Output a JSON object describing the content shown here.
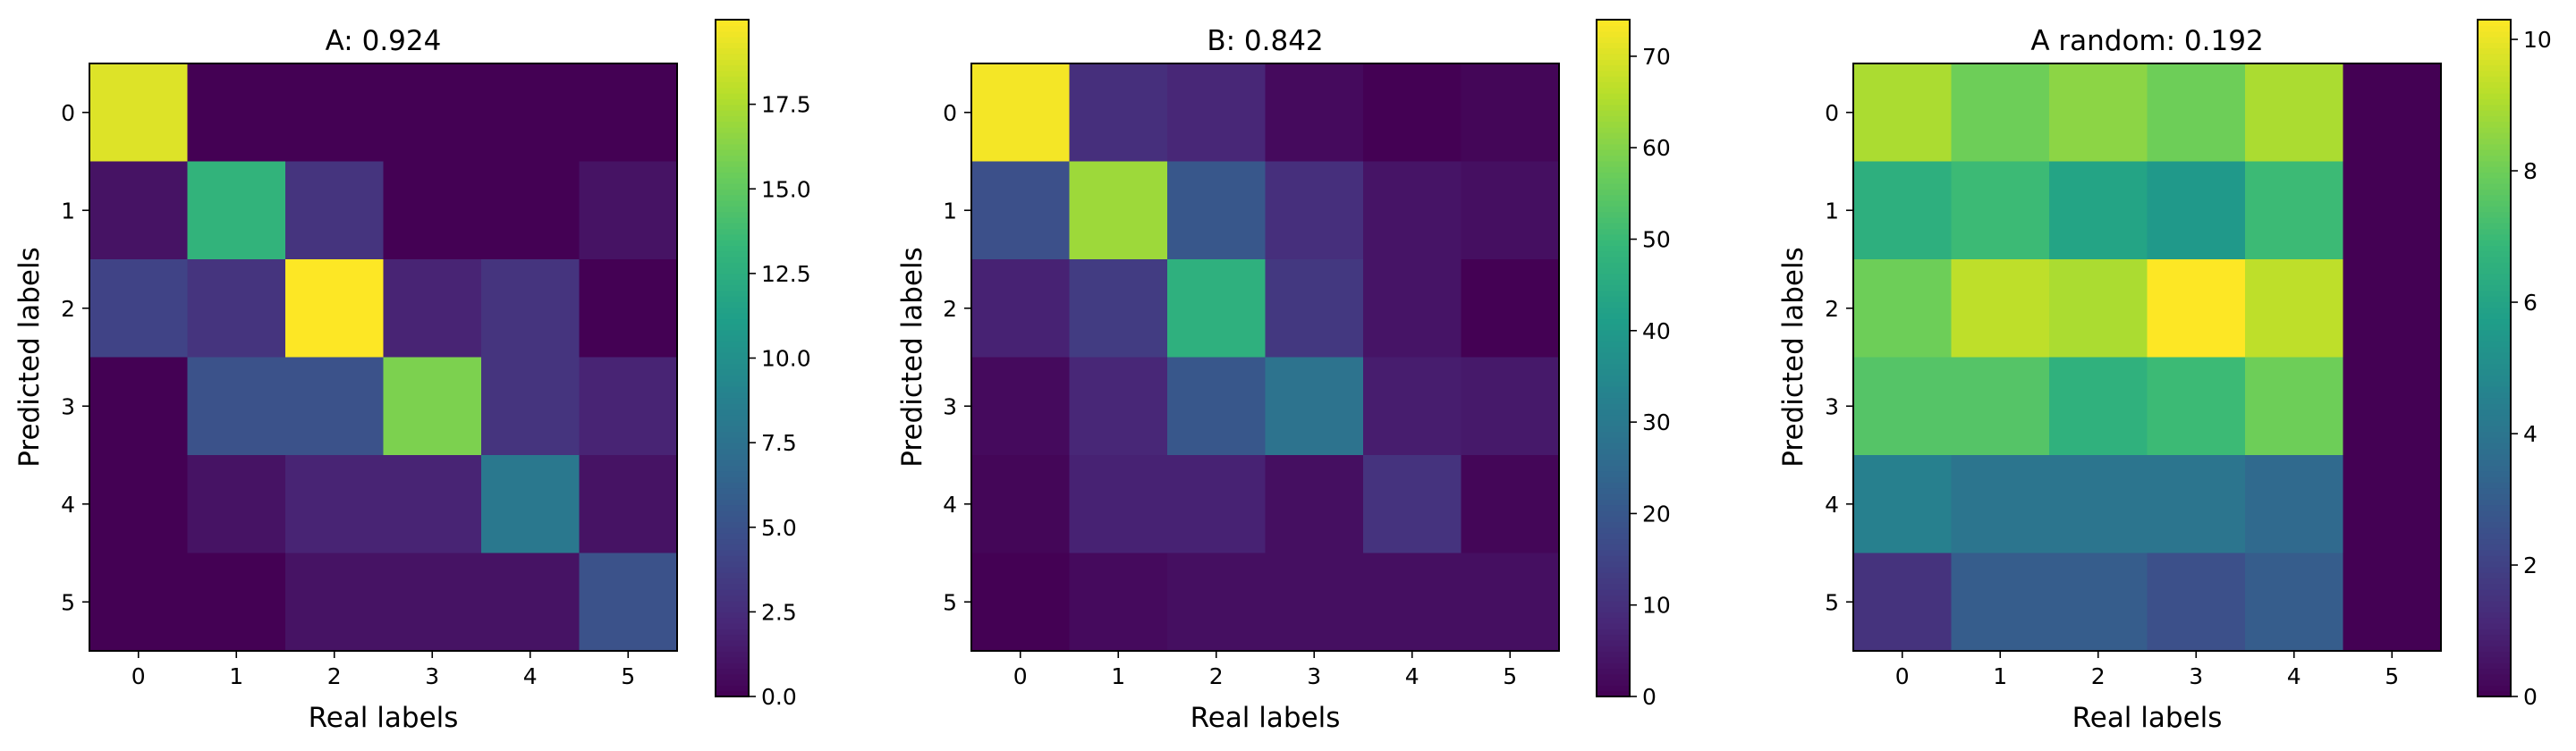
{
  "chart_data": [
    {
      "type": "heatmap",
      "title": "A: 0.924",
      "xlabel": "Real labels",
      "ylabel": "Predicted labels",
      "x_ticks": [
        "0",
        "1",
        "2",
        "3",
        "4",
        "5"
      ],
      "y_ticks": [
        "0",
        "1",
        "2",
        "3",
        "4",
        "5"
      ],
      "vmin": 0,
      "vmax": 20,
      "colorbar_ticks": [
        "0.0",
        "2.5",
        "5.0",
        "7.5",
        "10.0",
        "12.5",
        "15.0",
        "17.5"
      ],
      "colorbar_tick_values": [
        0,
        2.5,
        5,
        7.5,
        10,
        12.5,
        15,
        17.5
      ],
      "matrix": [
        [
          19,
          0,
          0,
          0,
          0,
          0
        ],
        [
          1,
          13,
          3,
          0,
          0,
          1
        ],
        [
          4,
          3,
          20,
          2,
          3,
          0
        ],
        [
          0,
          5,
          5,
          16,
          3,
          2
        ],
        [
          0,
          1,
          2,
          2,
          8,
          1
        ],
        [
          0,
          0,
          1,
          1,
          1,
          5
        ]
      ]
    },
    {
      "type": "heatmap",
      "title": "B: 0.842",
      "xlabel": "Real labels",
      "ylabel": "Predicted labels",
      "x_ticks": [
        "0",
        "1",
        "2",
        "3",
        "4",
        "5"
      ],
      "y_ticks": [
        "0",
        "1",
        "2",
        "3",
        "4",
        "5"
      ],
      "vmin": 0,
      "vmax": 74,
      "colorbar_ticks": [
        "0",
        "10",
        "20",
        "30",
        "40",
        "50",
        "60",
        "70"
      ],
      "colorbar_tick_values": [
        0,
        10,
        20,
        30,
        40,
        50,
        60,
        70
      ],
      "matrix": [
        [
          73,
          10,
          8,
          2,
          0,
          1
        ],
        [
          18,
          63,
          20,
          10,
          4,
          3
        ],
        [
          7,
          13,
          47,
          12,
          4,
          0
        ],
        [
          2,
          8,
          20,
          28,
          6,
          5
        ],
        [
          1,
          7,
          7,
          3,
          11,
          1
        ],
        [
          0,
          2,
          3,
          3,
          3,
          3
        ]
      ]
    },
    {
      "type": "heatmap",
      "title": "A random: 0.192",
      "xlabel": "Real labels",
      "ylabel": "Predicted labels",
      "x_ticks": [
        "0",
        "1",
        "2",
        "3",
        "4",
        "5"
      ],
      "y_ticks": [
        "0",
        "1",
        "2",
        "3",
        "4",
        "5"
      ],
      "vmin": 0,
      "vmax": 10.3,
      "colorbar_ticks": [
        "0",
        "2",
        "4",
        "6",
        "8",
        "10"
      ],
      "colorbar_tick_values": [
        0,
        2,
        4,
        6,
        8,
        10
      ],
      "matrix": [
        [
          9,
          8,
          8.5,
          8,
          9,
          0
        ],
        [
          6.5,
          7,
          6,
          5.5,
          7,
          0
        ],
        [
          8,
          9.3,
          9,
          10.3,
          9.3,
          0
        ],
        [
          7.5,
          7.5,
          6.6,
          7,
          8,
          0
        ],
        [
          4.5,
          4,
          4,
          4,
          3.5,
          0
        ],
        [
          1.5,
          3,
          3,
          2.5,
          3,
          0
        ]
      ]
    }
  ]
}
